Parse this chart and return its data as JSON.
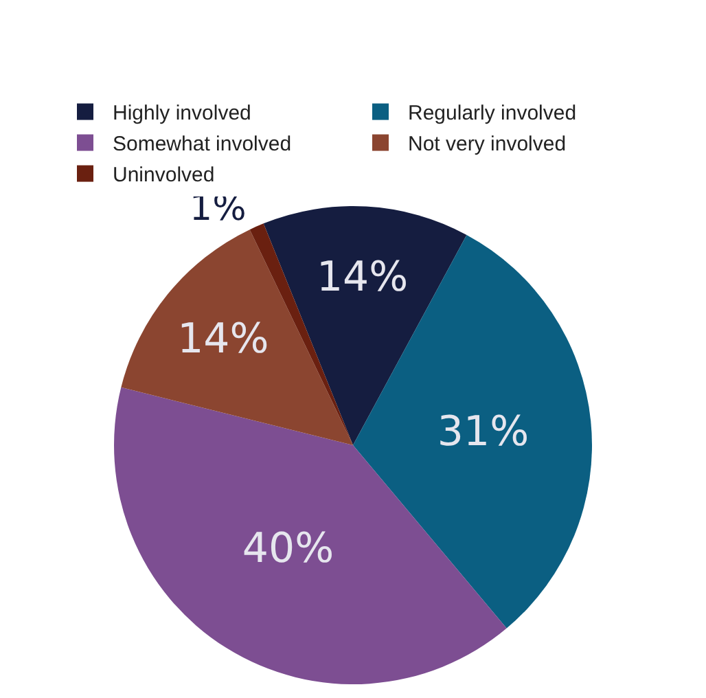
{
  "chart_data": {
    "type": "pie",
    "categories": [
      "Highly involved",
      "Regularly involved",
      "Somewhat involved",
      "Not very involved",
      "Uninvolved"
    ],
    "values": [
      14,
      31,
      40,
      14,
      1
    ],
    "value_labels": [
      "14%",
      "31%",
      "40%",
      "14%",
      "1%"
    ],
    "colors": [
      "#151d40",
      "#0b5f82",
      "#7d4e92",
      "#8b4530",
      "#6a2010"
    ],
    "legend": "top"
  }
}
